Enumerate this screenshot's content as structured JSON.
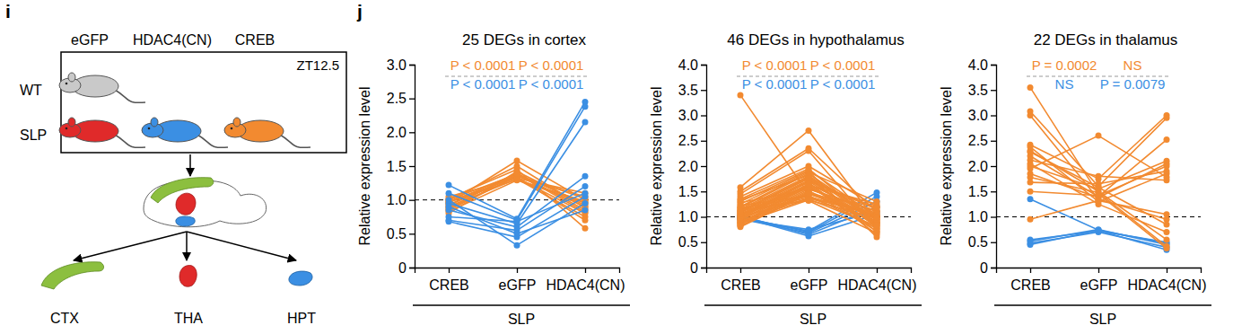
{
  "panel_labels": [
    "i",
    "j"
  ],
  "diagram": {
    "columns": [
      "eGFP",
      "HDAC4(CN)",
      "CREB"
    ],
    "rows": [
      "WT",
      "SLP"
    ],
    "time": "ZT12.5",
    "regions": [
      "CTX",
      "THA",
      "HPT"
    ]
  },
  "chart_data": [
    {
      "type": "line",
      "title": "25 DEGs in cortex",
      "categories": [
        "CREB",
        "eGFP",
        "HDAC4(CN)"
      ],
      "xlabel": "SLP",
      "ylabel": "Relative expression level",
      "ylim": [
        0,
        3
      ],
      "yticks": [
        0,
        0.5,
        {
          "value": 1,
          "label": "1.0"
        },
        1.5,
        {
          "value": 2,
          "label": "2.0"
        },
        2.5,
        {
          "value": 3,
          "label": "3.0"
        }
      ],
      "reference_line": 1,
      "marker": "circle",
      "annotations": [
        {
          "text": "P < 0.0001",
          "color": "#f28a30"
        },
        {
          "text": "P < 0.0001",
          "color": "#f28a30"
        },
        {
          "text": "P < 0.0001",
          "color": "#3b8fe3"
        },
        {
          "text": "P < 0.0001",
          "color": "#3b8fe3"
        }
      ],
      "series": [
        {
          "color": "#f28a30",
          "values": [
            0.95,
            1.58,
            1.0
          ]
        },
        {
          "color": "#f28a30",
          "values": [
            1.02,
            1.45,
            0.58
          ]
        },
        {
          "color": "#f28a30",
          "values": [
            0.88,
            1.4,
            0.85
          ]
        },
        {
          "color": "#f28a30",
          "values": [
            1.0,
            1.38,
            0.95
          ]
        },
        {
          "color": "#f28a30",
          "values": [
            0.92,
            1.36,
            0.9
          ]
        },
        {
          "color": "#f28a30",
          "values": [
            0.85,
            1.35,
            1.05
          ]
        },
        {
          "color": "#f28a30",
          "values": [
            0.98,
            1.33,
            0.8
          ]
        },
        {
          "color": "#f28a30",
          "values": [
            1.05,
            1.32,
            1.1
          ]
        },
        {
          "color": "#f28a30",
          "values": [
            0.9,
            1.31,
            0.75
          ]
        },
        {
          "color": "#f28a30",
          "values": [
            0.8,
            1.42,
            0.92
          ]
        },
        {
          "color": "#f28a30",
          "values": [
            0.97,
            1.3,
            0.98
          ]
        },
        {
          "color": "#f28a30",
          "values": [
            0.93,
            1.37,
            1.02
          ]
        },
        {
          "color": "#f28a30",
          "values": [
            0.87,
            1.34,
            0.7
          ]
        },
        {
          "color": "#f28a30",
          "values": [
            1.0,
            1.5,
            0.88
          ]
        },
        {
          "color": "#f28a30",
          "values": [
            0.83,
            1.29,
            0.96
          ]
        },
        {
          "color": "#f28a30",
          "values": [
            0.96,
            1.39,
            0.82
          ]
        },
        {
          "color": "#3b8fe3",
          "values": [
            1.22,
            0.72,
            2.45
          ]
        },
        {
          "color": "#3b8fe3",
          "values": [
            1.1,
            0.7,
            2.38
          ]
        },
        {
          "color": "#3b8fe3",
          "values": [
            0.95,
            0.65,
            2.15
          ]
        },
        {
          "color": "#3b8fe3",
          "values": [
            0.85,
            0.6,
            1.35
          ]
        },
        {
          "color": "#3b8fe3",
          "values": [
            0.7,
            0.55,
            1.2
          ]
        },
        {
          "color": "#3b8fe3",
          "values": [
            0.68,
            0.45,
            1.05
          ]
        },
        {
          "color": "#3b8fe3",
          "values": [
            1.0,
            0.33,
            0.95
          ]
        },
        {
          "color": "#3b8fe3",
          "values": [
            0.9,
            0.5,
            0.85
          ]
        },
        {
          "color": "#3b8fe3",
          "values": [
            0.75,
            0.68,
            1.1
          ]
        }
      ]
    },
    {
      "type": "line",
      "title": "46 DEGs in hypothalamus",
      "categories": [
        "CREB",
        "eGFP",
        "HDAC4(CN)"
      ],
      "xlabel": "SLP",
      "ylabel": "Relative expression level",
      "ylim": [
        0,
        4
      ],
      "yticks": [
        0,
        0.5,
        {
          "value": 1,
          "label": "1.0"
        },
        1.5,
        {
          "value": 2,
          "label": "2.0"
        },
        2.5,
        {
          "value": 3,
          "label": "3.0"
        },
        3.5,
        {
          "value": 4,
          "label": "4.0"
        }
      ],
      "reference_line": 1,
      "marker": "circle",
      "annotations": [
        {
          "text": "P < 0.0001",
          "color": "#f28a30"
        },
        {
          "text": "P < 0.0001",
          "color": "#f28a30"
        },
        {
          "text": "P < 0.0001",
          "color": "#3b8fe3"
        },
        {
          "text": "P < 0.0001",
          "color": "#3b8fe3"
        }
      ],
      "series": [
        {
          "color": "#3b8fe3",
          "values": [
            0.98,
            0.72,
            1.48
          ]
        },
        {
          "color": "#3b8fe3",
          "values": [
            1.0,
            0.7,
            1.4
          ]
        },
        {
          "color": "#3b8fe3",
          "values": [
            0.96,
            0.68,
            1.3
          ]
        },
        {
          "color": "#3b8fe3",
          "values": [
            1.02,
            0.65,
            1.2
          ]
        },
        {
          "color": "#3b8fe3",
          "values": [
            0.95,
            0.75,
            1.1
          ]
        },
        {
          "color": "#3b8fe3",
          "values": [
            1.0,
            0.62,
            1.05
          ]
        },
        {
          "color": "#f28a30",
          "values": [
            3.4,
            1.45,
            1.0
          ]
        },
        {
          "color": "#f28a30",
          "values": [
            1.58,
            2.7,
            0.9
          ]
        },
        {
          "color": "#f28a30",
          "values": [
            1.5,
            2.35,
            1.1
          ]
        },
        {
          "color": "#f28a30",
          "values": [
            1.45,
            2.3,
            0.75
          ]
        },
        {
          "color": "#f28a30",
          "values": [
            1.4,
            2.0,
            1.2
          ]
        },
        {
          "color": "#f28a30",
          "values": [
            1.35,
            1.95,
            0.85
          ]
        },
        {
          "color": "#f28a30",
          "values": [
            1.3,
            1.92,
            1.0
          ]
        },
        {
          "color": "#f28a30",
          "values": [
            1.25,
            1.9,
            0.6
          ]
        },
        {
          "color": "#f28a30",
          "values": [
            1.2,
            1.88,
            1.3
          ]
        },
        {
          "color": "#f28a30",
          "values": [
            1.18,
            1.85,
            0.95
          ]
        },
        {
          "color": "#f28a30",
          "values": [
            1.15,
            1.8,
            0.7
          ]
        },
        {
          "color": "#f28a30",
          "values": [
            1.12,
            1.78,
            1.05
          ]
        },
        {
          "color": "#f28a30",
          "values": [
            1.1,
            1.75,
            0.8
          ]
        },
        {
          "color": "#f28a30",
          "values": [
            1.08,
            1.72,
            1.15
          ]
        },
        {
          "color": "#f28a30",
          "values": [
            1.05,
            1.7,
            0.9
          ]
        },
        {
          "color": "#f28a30",
          "values": [
            1.03,
            1.68,
            0.65
          ]
        },
        {
          "color": "#f28a30",
          "values": [
            1.0,
            1.65,
            1.0
          ]
        },
        {
          "color": "#f28a30",
          "values": [
            0.98,
            1.62,
            1.25
          ]
        },
        {
          "color": "#f28a30",
          "values": [
            0.95,
            1.6,
            0.85
          ]
        },
        {
          "color": "#f28a30",
          "values": [
            0.93,
            1.58,
            0.95
          ]
        },
        {
          "color": "#f28a30",
          "values": [
            0.9,
            1.55,
            1.1
          ]
        },
        {
          "color": "#f28a30",
          "values": [
            0.88,
            1.52,
            0.72
          ]
        },
        {
          "color": "#f28a30",
          "values": [
            0.85,
            1.5,
            1.0
          ]
        },
        {
          "color": "#f28a30",
          "values": [
            0.82,
            1.48,
            0.88
          ]
        },
        {
          "color": "#f28a30",
          "values": [
            0.8,
            1.45,
            1.2
          ]
        },
        {
          "color": "#f28a30",
          "values": [
            1.22,
            1.42,
            0.78
          ]
        },
        {
          "color": "#f28a30",
          "values": [
            1.17,
            1.4,
            1.02
          ]
        },
        {
          "color": "#f28a30",
          "values": [
            1.07,
            1.38,
            0.92
          ]
        },
        {
          "color": "#f28a30",
          "values": [
            1.0,
            1.36,
            1.08
          ]
        },
        {
          "color": "#f28a30",
          "values": [
            0.92,
            1.35,
            0.82
          ]
        },
        {
          "color": "#f28a30",
          "values": [
            0.87,
            1.33,
            0.98
          ]
        },
        {
          "color": "#f28a30",
          "values": [
            1.13,
            1.32,
            0.68
          ]
        },
        {
          "color": "#f28a30",
          "values": [
            1.28,
            1.55,
            1.12
          ]
        },
        {
          "color": "#f28a30",
          "values": [
            1.02,
            1.62,
            0.76
          ]
        },
        {
          "color": "#f28a30",
          "values": [
            0.97,
            1.7,
            1.18
          ]
        },
        {
          "color": "#f28a30",
          "values": [
            1.33,
            1.82,
            0.88
          ]
        },
        {
          "color": "#f28a30",
          "values": [
            0.9,
            1.46,
            1.04
          ]
        },
        {
          "color": "#f28a30",
          "values": [
            1.06,
            1.58,
            0.94
          ]
        },
        {
          "color": "#f28a30",
          "values": [
            0.84,
            1.64,
            0.83
          ]
        },
        {
          "color": "#f28a30",
          "values": [
            1.11,
            1.76,
            0.99
          ]
        }
      ]
    },
    {
      "type": "line",
      "title": "22 DEGs in thalamus",
      "categories": [
        "CREB",
        "eGFP",
        "HDAC4(CN)"
      ],
      "xlabel": "SLP",
      "ylabel": "Relative expression level",
      "ylim": [
        0,
        4
      ],
      "yticks": [
        0,
        0.5,
        {
          "value": 1,
          "label": "1.0"
        },
        1.5,
        {
          "value": 2,
          "label": "2.0"
        },
        2.5,
        {
          "value": 3,
          "label": "3.0"
        },
        3.5,
        {
          "value": 4,
          "label": "4.0"
        }
      ],
      "reference_line": 1,
      "marker": "circle",
      "annotations": [
        {
          "text": "P = 0.0002",
          "color": "#f28a30"
        },
        {
          "text": "NS",
          "color": "#f28a30"
        },
        {
          "text": "NS",
          "color": "#3b8fe3"
        },
        {
          "text": "P = 0.0079",
          "color": "#3b8fe3"
        }
      ],
      "series": [
        {
          "color": "#3b8fe3",
          "values": [
            0.55,
            0.72,
            0.5
          ]
        },
        {
          "color": "#3b8fe3",
          "values": [
            0.52,
            0.75,
            0.45
          ]
        },
        {
          "color": "#3b8fe3",
          "values": [
            0.48,
            0.7,
            0.4
          ]
        },
        {
          "color": "#3b8fe3",
          "values": [
            0.45,
            0.73,
            0.35
          ]
        },
        {
          "color": "#3b8fe3",
          "values": [
            1.35,
            0.74,
            0.48
          ]
        },
        {
          "color": "#f28a30",
          "values": [
            3.55,
            1.45,
            0.38
          ]
        },
        {
          "color": "#f28a30",
          "values": [
            3.08,
            1.6,
            2.95
          ]
        },
        {
          "color": "#f28a30",
          "values": [
            3.0,
            1.35,
            0.95
          ]
        },
        {
          "color": "#f28a30",
          "values": [
            2.42,
            1.75,
            3.0
          ]
        },
        {
          "color": "#f28a30",
          "values": [
            2.38,
            1.3,
            1.85
          ]
        },
        {
          "color": "#f28a30",
          "values": [
            2.3,
            1.5,
            0.55
          ]
        },
        {
          "color": "#f28a30",
          "values": [
            2.2,
            1.4,
            2.52
          ]
        },
        {
          "color": "#f28a30",
          "values": [
            2.12,
            1.8,
            1.72
          ]
        },
        {
          "color": "#f28a30",
          "values": [
            2.05,
            1.25,
            0.7
          ]
        },
        {
          "color": "#f28a30",
          "values": [
            2.0,
            1.55,
            2.1
          ]
        },
        {
          "color": "#f28a30",
          "values": [
            1.95,
            2.6,
            1.78
          ]
        },
        {
          "color": "#f28a30",
          "values": [
            1.85,
            1.38,
            2.05
          ]
        },
        {
          "color": "#f28a30",
          "values": [
            1.78,
            1.48,
            0.42
          ]
        },
        {
          "color": "#f28a30",
          "values": [
            1.68,
            1.65,
            1.9
          ]
        },
        {
          "color": "#f28a30",
          "values": [
            1.5,
            1.42,
            2.0
          ]
        },
        {
          "color": "#f28a30",
          "values": [
            0.95,
            1.32,
            1.05
          ]
        },
        {
          "color": "#f28a30",
          "values": [
            2.28,
            1.58,
            0.85
          ]
        }
      ]
    }
  ]
}
